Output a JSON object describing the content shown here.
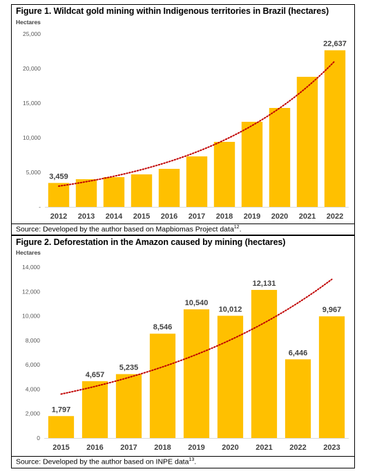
{
  "figure1": {
    "title": "Figure 1. Wildcat gold mining within Indigenous territories in Brazil (hectares)",
    "source": "Source: Developed by the author based on Mapbiomas Project data",
    "source_sup": "12",
    "bar_color": "#FFC000",
    "trend_color": "#C00000",
    "chart_data": {
      "type": "bar",
      "ylabel": "Hectares",
      "ylim": [
        0,
        25000
      ],
      "yticks": [
        "25,000",
        "20,000",
        "15,000",
        "10,000",
        "5,000",
        "-"
      ],
      "ytick_values": [
        25000,
        20000,
        15000,
        10000,
        5000,
        0
      ],
      "categories": [
        "2012",
        "2013",
        "2014",
        "2015",
        "2016",
        "2017",
        "2018",
        "2019",
        "2020",
        "2021",
        "2022"
      ],
      "values": [
        3459,
        4000,
        4300,
        4700,
        5500,
        7300,
        9400,
        12300,
        14300,
        18800,
        22637
      ],
      "data_labels": [
        "3,459",
        "",
        "",
        "",
        "",
        "",
        "",
        "",
        "",
        "",
        "22,637"
      ],
      "trendline": "exponential",
      "trend_start": 3000,
      "trend_end": 21100,
      "grid": false
    }
  },
  "figure2": {
    "title": "Figure 2. Deforestation in the Amazon caused by mining (hectares)",
    "source": "Source: Developed by the author based on INPE data",
    "source_sup": "13",
    "bar_color": "#FFC000",
    "trend_color": "#C00000",
    "chart_data": {
      "type": "bar",
      "ylabel": "Hectares",
      "ylim": [
        0,
        14000
      ],
      "yticks": [
        "14,000",
        "12,000",
        "10,000",
        "8,000",
        "6,000",
        "4,000",
        "2,000",
        "0"
      ],
      "ytick_values": [
        14000,
        12000,
        10000,
        8000,
        6000,
        4000,
        2000,
        0
      ],
      "categories": [
        "2015",
        "2016",
        "2017",
        "2018",
        "2019",
        "2020",
        "2021",
        "2022",
        "2023"
      ],
      "values": [
        1797,
        4657,
        5235,
        8546,
        10540,
        10012,
        12131,
        6446,
        9967
      ],
      "data_labels": [
        "1,797",
        "4,657",
        "5,235",
        "8,546",
        "10,540",
        "10,012",
        "12,131",
        "6,446",
        "9,967"
      ],
      "trendline": "exponential",
      "trend_start": 3600,
      "trend_end": 13000,
      "grid": false
    }
  }
}
